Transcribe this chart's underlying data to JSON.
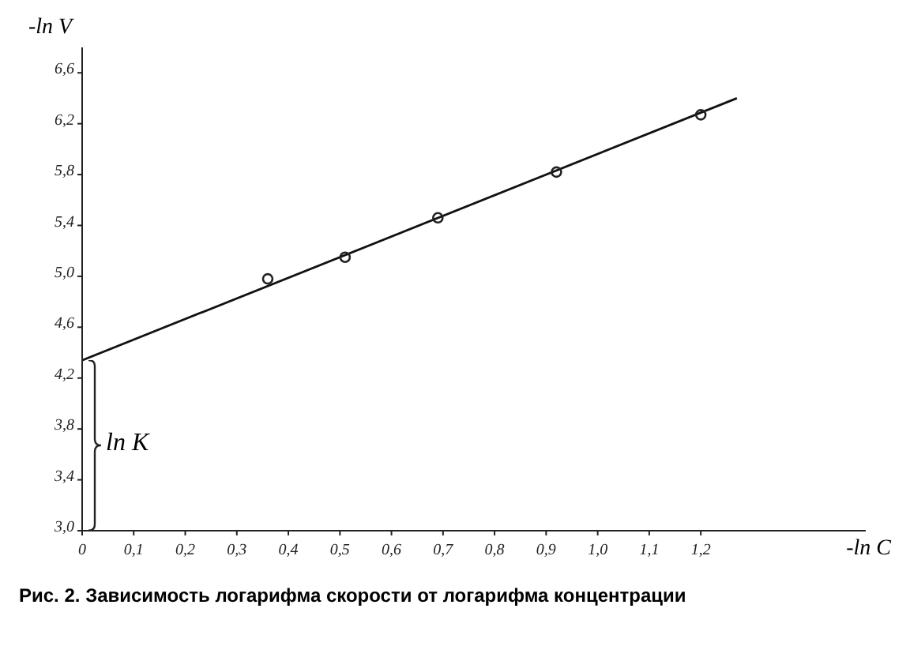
{
  "chart_data": {
    "type": "scatter",
    "xlabel": "-ln C",
    "ylabel": "-ln V",
    "annotations": [
      "ln K",
      "Рис. 2. Зависимость логарифма скорости от логарифма концентрации"
    ],
    "series": [
      {
        "color": "#222222",
        "marker": "circle",
        "x": [
          0.36,
          0.51,
          0.69,
          0.92,
          1.2
        ],
        "values": [
          4.98,
          5.15,
          5.46,
          5.82,
          6.27
        ]
      },
      {
        "type": "line",
        "color": "#111111",
        "marker": "none",
        "x": [
          0,
          1.27
        ],
        "values": [
          4.34,
          6.4
        ]
      }
    ],
    "xlim": [
      0,
      1.52
    ],
    "ylim": [
      3.0,
      6.8
    ],
    "xticks": [
      0,
      {
        "value": 0.1,
        "label": "0,1"
      },
      {
        "value": 0.2,
        "label": "0,2"
      },
      {
        "value": 0.3,
        "label": "0,3"
      },
      {
        "value": 0.4,
        "label": "0,4"
      },
      {
        "value": 0.5,
        "label": "0,5"
      },
      {
        "value": 0.6,
        "label": "0,6"
      },
      {
        "value": 0.7,
        "label": "0,7"
      },
      {
        "value": 0.8,
        "label": "0,8"
      },
      {
        "value": 0.9,
        "label": "0,9"
      },
      {
        "value": 1.0,
        "label": "1,0"
      },
      {
        "value": 1.1,
        "label": "1,1"
      },
      {
        "value": 1.2,
        "label": "1,2"
      }
    ],
    "yticks": [
      {
        "value": 3.0,
        "label": "3,0"
      },
      {
        "value": 3.4,
        "label": "3,4"
      },
      {
        "value": 3.8,
        "label": "3,8"
      },
      {
        "value": 4.2,
        "label": "4,2"
      },
      {
        "value": 4.6,
        "label": "4,6"
      },
      {
        "value": 5.0,
        "label": "5,0"
      },
      {
        "value": 5.4,
        "label": "5,4"
      },
      {
        "value": 5.8,
        "label": "5,8"
      },
      {
        "value": 6.2,
        "label": "6,2"
      },
      {
        "value": 6.6,
        "label": "6,6"
      }
    ],
    "grid": false,
    "legend": false
  }
}
